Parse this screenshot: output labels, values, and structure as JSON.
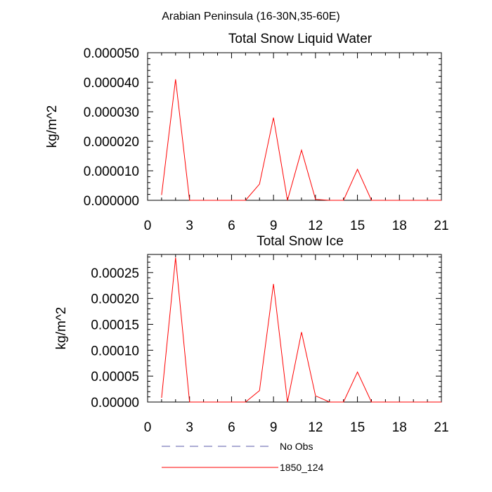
{
  "figure_title": "Arabian Peninsula (16-30N,35-60E)",
  "legend": [
    {
      "label": "No Obs",
      "color": "#5a5aa8",
      "style": "dashed"
    },
    {
      "label": "1850_124",
      "color": "#ff0000",
      "style": "solid"
    }
  ],
  "chart_data": [
    {
      "type": "line",
      "title": "Total Snow Liquid Water",
      "xlabel": "",
      "ylabel": "kg/m^2",
      "xlim": [
        0,
        21
      ],
      "ylim": [
        0,
        5e-05
      ],
      "x_ticks": [
        "0",
        "3",
        "6",
        "9",
        "12",
        "15",
        "18",
        "21"
      ],
      "y_ticks": [
        "0.000000",
        "0.000010",
        "0.000020",
        "0.000030",
        "0.000040",
        "0.000050"
      ],
      "grid": false,
      "series": [
        {
          "name": "1850_124",
          "color": "#ff0000",
          "x": [
            1,
            2,
            3,
            4,
            5,
            6,
            7,
            8,
            9,
            10,
            11,
            12,
            13,
            14,
            15,
            16,
            17,
            18,
            19,
            20,
            21
          ],
          "values": [
            1.8e-06,
            4.1e-05,
            0,
            0,
            0,
            0,
            0,
            5.5e-06,
            2.8e-05,
            0,
            1.7e-05,
            3e-07,
            0,
            0,
            1.05e-05,
            0,
            0,
            0,
            0,
            0,
            0
          ]
        }
      ]
    },
    {
      "type": "line",
      "title": "Total Snow Ice",
      "xlabel": "",
      "ylabel": "kg/m^2",
      "xlim": [
        0,
        21
      ],
      "ylim": [
        0,
        0.000285
      ],
      "x_ticks": [
        "0",
        "3",
        "6",
        "9",
        "12",
        "15",
        "18",
        "21"
      ],
      "y_ticks": [
        "0.00000",
        "0.00005",
        "0.00010",
        "0.00015",
        "0.00020",
        "0.00025"
      ],
      "grid": false,
      "series": [
        {
          "name": "1850_124",
          "color": "#ff0000",
          "x": [
            1,
            2,
            3,
            4,
            5,
            6,
            7,
            8,
            9,
            10,
            11,
            12,
            13,
            14,
            15,
            16,
            17,
            18,
            19,
            20,
            21
          ],
          "values": [
            8e-06,
            0.000279,
            0,
            0,
            0,
            0,
            0,
            2.2e-05,
            0.000228,
            0,
            0.000135,
            1.2e-05,
            0,
            0,
            5.8e-05,
            0,
            0,
            0,
            0,
            0,
            0
          ]
        }
      ]
    }
  ]
}
